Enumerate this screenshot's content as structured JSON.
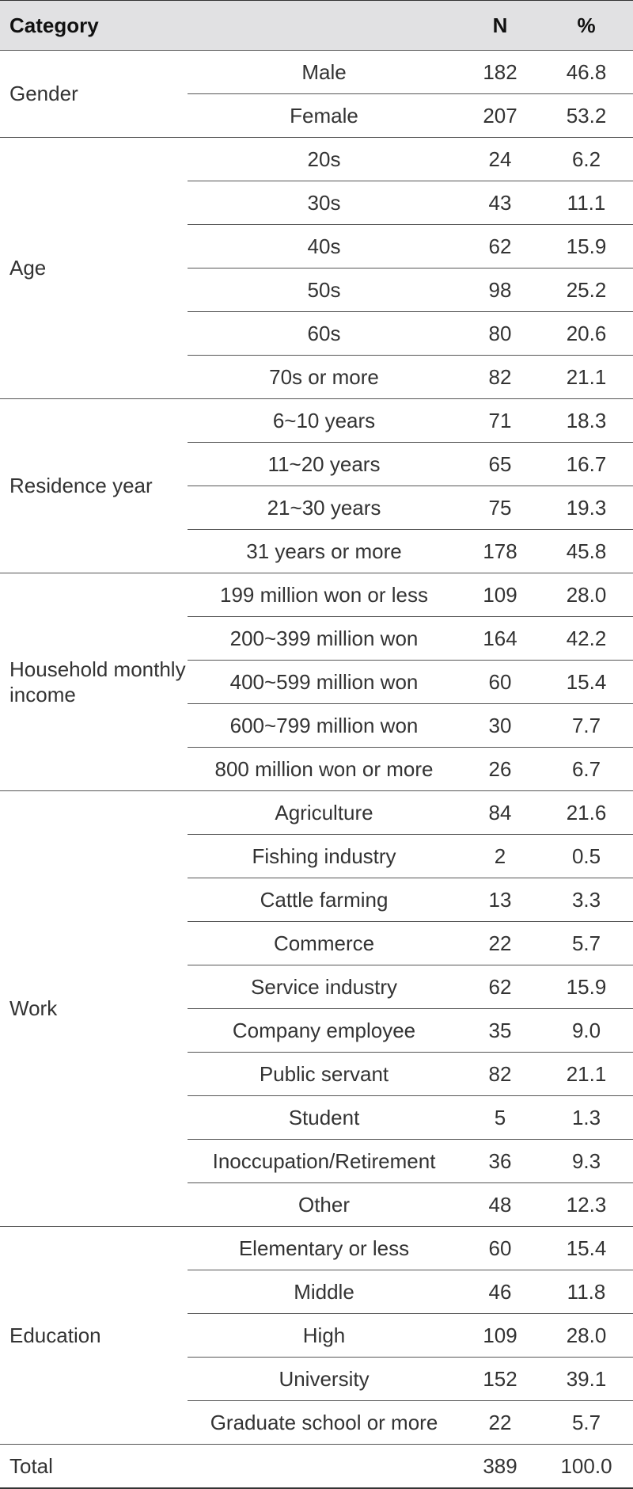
{
  "header": {
    "category": "Category",
    "n": "N",
    "pct": "%"
  },
  "groups": [
    {
      "name": "Gender",
      "rows": [
        {
          "label": "Male",
          "n": "182",
          "pct": "46.8"
        },
        {
          "label": "Female",
          "n": "207",
          "pct": "53.2"
        }
      ]
    },
    {
      "name": "Age",
      "rows": [
        {
          "label": "20s",
          "n": "24",
          "pct": "6.2"
        },
        {
          "label": "30s",
          "n": "43",
          "pct": "11.1"
        },
        {
          "label": "40s",
          "n": "62",
          "pct": "15.9"
        },
        {
          "label": "50s",
          "n": "98",
          "pct": "25.2"
        },
        {
          "label": "60s",
          "n": "80",
          "pct": "20.6"
        },
        {
          "label": "70s or more",
          "n": "82",
          "pct": "21.1"
        }
      ]
    },
    {
      "name": "Residence year",
      "rows": [
        {
          "label": "6~10 years",
          "n": "71",
          "pct": "18.3"
        },
        {
          "label": "11~20 years",
          "n": "65",
          "pct": "16.7"
        },
        {
          "label": "21~30 years",
          "n": "75",
          "pct": "19.3"
        },
        {
          "label": "31 years or more",
          "n": "178",
          "pct": "45.8"
        }
      ]
    },
    {
      "name": "Household monthly income",
      "rows": [
        {
          "label": "199 million won or less",
          "n": "109",
          "pct": "28.0"
        },
        {
          "label": "200~399 million won",
          "n": "164",
          "pct": "42.2"
        },
        {
          "label": "400~599 million won",
          "n": "60",
          "pct": "15.4"
        },
        {
          "label": "600~799 million won",
          "n": "30",
          "pct": "7.7"
        },
        {
          "label": "800 million won or more",
          "n": "26",
          "pct": "6.7"
        }
      ]
    },
    {
      "name": "Work",
      "rows": [
        {
          "label": "Agriculture",
          "n": "84",
          "pct": "21.6"
        },
        {
          "label": "Fishing industry",
          "n": "2",
          "pct": "0.5"
        },
        {
          "label": "Cattle farming",
          "n": "13",
          "pct": "3.3"
        },
        {
          "label": "Commerce",
          "n": "22",
          "pct": "5.7"
        },
        {
          "label": "Service industry",
          "n": "62",
          "pct": "15.9"
        },
        {
          "label": "Company employee",
          "n": "35",
          "pct": "9.0"
        },
        {
          "label": "Public servant",
          "n": "82",
          "pct": "21.1"
        },
        {
          "label": "Student",
          "n": "5",
          "pct": "1.3"
        },
        {
          "label": "Inoccupation/Retirement",
          "n": "36",
          "pct": "9.3"
        },
        {
          "label": "Other",
          "n": "48",
          "pct": "12.3"
        }
      ]
    },
    {
      "name": "Education",
      "rows": [
        {
          "label": "Elementary or less",
          "n": "60",
          "pct": "15.4"
        },
        {
          "label": "Middle",
          "n": "46",
          "pct": "11.8"
        },
        {
          "label": "High",
          "n": "109",
          "pct": "28.0"
        },
        {
          "label": "University",
          "n": "152",
          "pct": "39.1"
        },
        {
          "label": "Graduate school or more",
          "n": "22",
          "pct": "5.7"
        }
      ]
    }
  ],
  "total": {
    "label": "Total",
    "n": "389",
    "pct": "100.0"
  }
}
